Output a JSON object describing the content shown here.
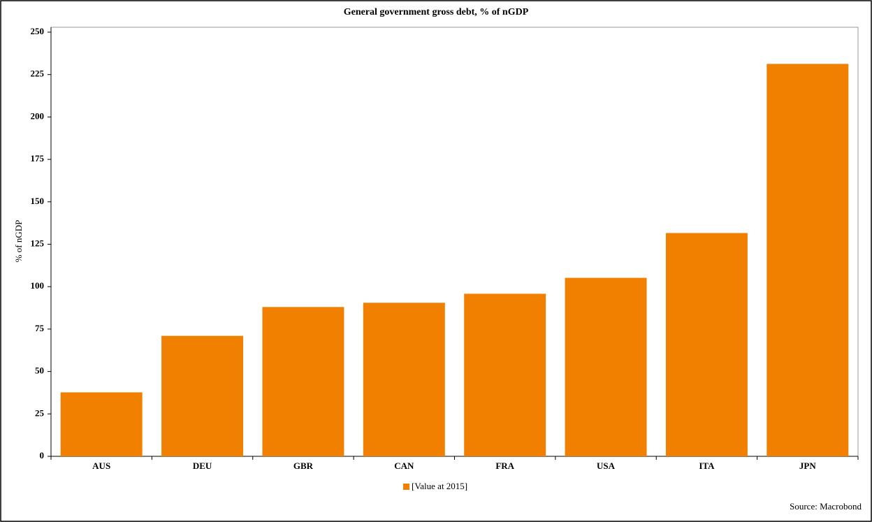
{
  "chart_data": {
    "type": "bar",
    "title": "General government gross debt, % of nGDP",
    "y_label": "% of nGDP",
    "categories": [
      "AUS",
      "DEU",
      "GBR",
      "CAN",
      "FRA",
      "USA",
      "ITA",
      "JPN"
    ],
    "series": [
      {
        "name": "[Value at 2015]",
        "color": "#f28000",
        "values": [
          37.7,
          71.0,
          88.0,
          90.5,
          95.8,
          105.2,
          131.6,
          231.3
        ]
      }
    ],
    "ylim": [
      0,
      250
    ],
    "yticks": [
      0,
      25,
      50,
      75,
      100,
      125,
      150,
      175,
      200,
      225,
      250
    ],
    "grid": false,
    "legend": "bottom",
    "source": "Source: Macrobond"
  }
}
